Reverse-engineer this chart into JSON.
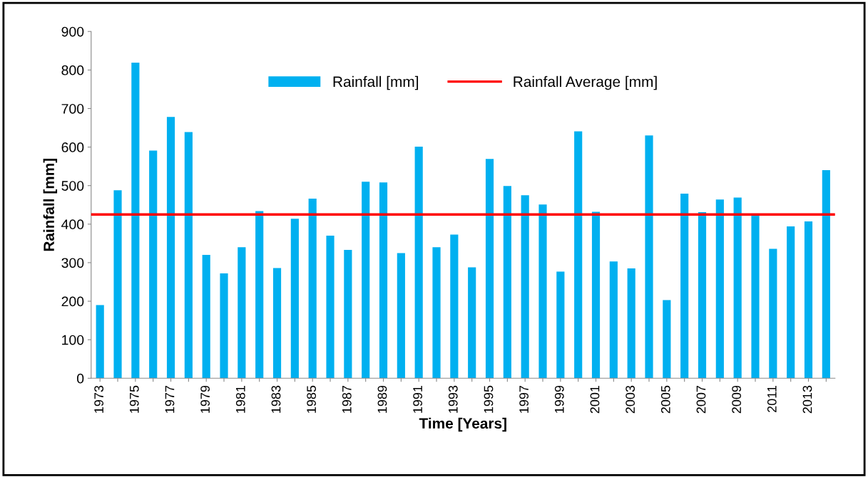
{
  "chart_data": {
    "type": "bar",
    "xlabel": "Time [Years]",
    "ylabel": "Rainfall [mm]",
    "categories": [
      "1973",
      null,
      "1975",
      null,
      "1977",
      null,
      "1979",
      null,
      "1981",
      null,
      "1983",
      null,
      "1985",
      null,
      "1987",
      null,
      "1989",
      null,
      "1991",
      null,
      "1993",
      null,
      "1995",
      null,
      "1997",
      null,
      "1999",
      null,
      "2001",
      null,
      "2003",
      null,
      "2005",
      null,
      "2007",
      null,
      "2009",
      null,
      "2011",
      null,
      "2013",
      null
    ],
    "series": [
      {
        "name": "Rainfall [mm]",
        "color": "#00b0f0",
        "values": [
          190,
          488,
          819,
          591,
          678,
          639,
          320,
          272,
          340,
          434,
          286,
          414,
          466,
          370,
          333,
          510,
          508,
          325,
          601,
          340,
          373,
          288,
          569,
          499,
          475,
          451,
          277,
          641,
          432,
          303,
          285,
          630,
          203,
          479,
          431,
          464,
          469,
          425,
          336,
          394,
          407,
          540
        ]
      }
    ],
    "ref_lines": [
      {
        "axis": "y",
        "value": 425,
        "label": "Rainfall Average [mm]",
        "color": "#ff0000",
        "line_style": "solid"
      }
    ],
    "ylim": [
      0,
      900
    ],
    "yticks": [
      0,
      100,
      200,
      300,
      400,
      500,
      600,
      700,
      800,
      900
    ],
    "grid": false,
    "legend": "top"
  }
}
